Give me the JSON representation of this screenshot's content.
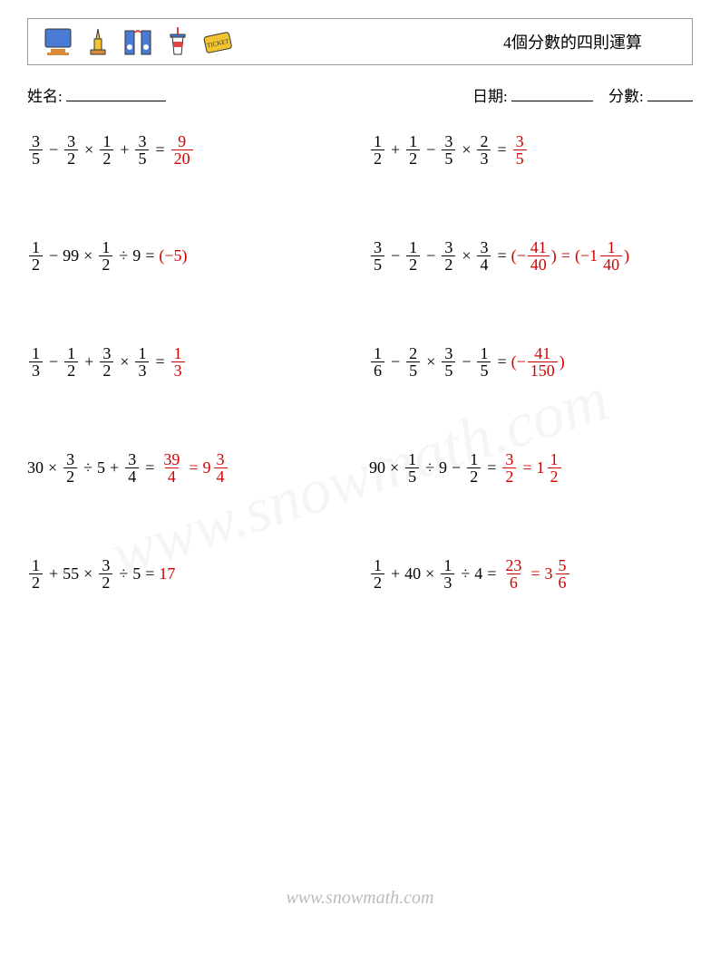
{
  "header": {
    "title": "4個分數的四則運算",
    "icons": [
      "monitor-icon",
      "trophy-icon",
      "speaker-icon",
      "cup-icon",
      "ticket-icon"
    ]
  },
  "info": {
    "name_label": "姓名:",
    "date_label": "日期:",
    "score_label": "分數:"
  },
  "problems": [
    {
      "left": [
        {
          "type": "frac",
          "n": "3",
          "d": "5"
        },
        {
          "type": "op",
          "v": "−"
        },
        {
          "type": "frac",
          "n": "3",
          "d": "2"
        },
        {
          "type": "op",
          "v": "×"
        },
        {
          "type": "frac",
          "n": "1",
          "d": "2"
        },
        {
          "type": "op",
          "v": "+"
        },
        {
          "type": "frac",
          "n": "3",
          "d": "5"
        },
        {
          "type": "op",
          "v": "="
        }
      ],
      "answer": [
        {
          "type": "frac",
          "n": "9",
          "d": "20"
        }
      ]
    },
    {
      "left": [
        {
          "type": "frac",
          "n": "1",
          "d": "2"
        },
        {
          "type": "op",
          "v": "+"
        },
        {
          "type": "frac",
          "n": "1",
          "d": "2"
        },
        {
          "type": "op",
          "v": "−"
        },
        {
          "type": "frac",
          "n": "3",
          "d": "5"
        },
        {
          "type": "op",
          "v": "×"
        },
        {
          "type": "frac",
          "n": "2",
          "d": "3"
        },
        {
          "type": "op",
          "v": "="
        }
      ],
      "answer": [
        {
          "type": "frac",
          "n": "3",
          "d": "5"
        }
      ]
    },
    {
      "left": [
        {
          "type": "frac",
          "n": "1",
          "d": "2"
        },
        {
          "type": "op",
          "v": "−"
        },
        {
          "type": "int",
          "v": "99"
        },
        {
          "type": "op",
          "v": "×"
        },
        {
          "type": "frac",
          "n": "1",
          "d": "2"
        },
        {
          "type": "op",
          "v": "÷"
        },
        {
          "type": "int",
          "v": "9"
        },
        {
          "type": "op",
          "v": "="
        }
      ],
      "answer": [
        {
          "type": "text",
          "v": "(−5)"
        }
      ]
    },
    {
      "left": [
        {
          "type": "frac",
          "n": "3",
          "d": "5"
        },
        {
          "type": "op",
          "v": "−"
        },
        {
          "type": "frac",
          "n": "1",
          "d": "2"
        },
        {
          "type": "op",
          "v": "−"
        },
        {
          "type": "frac",
          "n": "3",
          "d": "2"
        },
        {
          "type": "op",
          "v": "×"
        },
        {
          "type": "frac",
          "n": "3",
          "d": "4"
        },
        {
          "type": "op",
          "v": "="
        }
      ],
      "answer": [
        {
          "type": "text",
          "v": "(−"
        },
        {
          "type": "frac",
          "n": "41",
          "d": "40"
        },
        {
          "type": "text",
          "v": ")"
        },
        {
          "type": "op",
          "v": "="
        },
        {
          "type": "text",
          "v": "(−"
        },
        {
          "type": "mixed",
          "w": "1",
          "n": "1",
          "d": "40"
        },
        {
          "type": "text",
          "v": ")"
        }
      ]
    },
    {
      "left": [
        {
          "type": "frac",
          "n": "1",
          "d": "3"
        },
        {
          "type": "op",
          "v": "−"
        },
        {
          "type": "frac",
          "n": "1",
          "d": "2"
        },
        {
          "type": "op",
          "v": "+"
        },
        {
          "type": "frac",
          "n": "3",
          "d": "2"
        },
        {
          "type": "op",
          "v": "×"
        },
        {
          "type": "frac",
          "n": "1",
          "d": "3"
        },
        {
          "type": "op",
          "v": "="
        }
      ],
      "answer": [
        {
          "type": "frac",
          "n": "1",
          "d": "3"
        }
      ]
    },
    {
      "left": [
        {
          "type": "frac",
          "n": "1",
          "d": "6"
        },
        {
          "type": "op",
          "v": "−"
        },
        {
          "type": "frac",
          "n": "2",
          "d": "5"
        },
        {
          "type": "op",
          "v": "×"
        },
        {
          "type": "frac",
          "n": "3",
          "d": "5"
        },
        {
          "type": "op",
          "v": "−"
        },
        {
          "type": "frac",
          "n": "1",
          "d": "5"
        },
        {
          "type": "op",
          "v": "="
        }
      ],
      "answer": [
        {
          "type": "text",
          "v": "(−"
        },
        {
          "type": "frac",
          "n": "41",
          "d": "150"
        },
        {
          "type": "text",
          "v": ")"
        }
      ]
    },
    {
      "left": [
        {
          "type": "int",
          "v": "30"
        },
        {
          "type": "op",
          "v": "×"
        },
        {
          "type": "frac",
          "n": "3",
          "d": "2"
        },
        {
          "type": "op",
          "v": "÷"
        },
        {
          "type": "int",
          "v": "5"
        },
        {
          "type": "op",
          "v": "+"
        },
        {
          "type": "frac",
          "n": "3",
          "d": "4"
        },
        {
          "type": "op",
          "v": "="
        }
      ],
      "answer": [
        {
          "type": "frac",
          "n": "39",
          "d": "4"
        },
        {
          "type": "op",
          "v": "="
        },
        {
          "type": "mixed",
          "w": "9",
          "n": "3",
          "d": "4"
        }
      ]
    },
    {
      "left": [
        {
          "type": "int",
          "v": "90"
        },
        {
          "type": "op",
          "v": "×"
        },
        {
          "type": "frac",
          "n": "1",
          "d": "5"
        },
        {
          "type": "op",
          "v": "÷"
        },
        {
          "type": "int",
          "v": "9"
        },
        {
          "type": "op",
          "v": "−"
        },
        {
          "type": "frac",
          "n": "1",
          "d": "2"
        },
        {
          "type": "op",
          "v": "="
        }
      ],
      "answer": [
        {
          "type": "frac",
          "n": "3",
          "d": "2"
        },
        {
          "type": "op",
          "v": "="
        },
        {
          "type": "mixed",
          "w": "1",
          "n": "1",
          "d": "2"
        }
      ]
    },
    {
      "left": [
        {
          "type": "frac",
          "n": "1",
          "d": "2"
        },
        {
          "type": "op",
          "v": "+"
        },
        {
          "type": "int",
          "v": "55"
        },
        {
          "type": "op",
          "v": "×"
        },
        {
          "type": "frac",
          "n": "3",
          "d": "2"
        },
        {
          "type": "op",
          "v": "÷"
        },
        {
          "type": "int",
          "v": "5"
        },
        {
          "type": "op",
          "v": "="
        }
      ],
      "answer": [
        {
          "type": "int",
          "v": "17"
        }
      ]
    },
    {
      "left": [
        {
          "type": "frac",
          "n": "1",
          "d": "2"
        },
        {
          "type": "op",
          "v": "+"
        },
        {
          "type": "int",
          "v": "40"
        },
        {
          "type": "op",
          "v": "×"
        },
        {
          "type": "frac",
          "n": "1",
          "d": "3"
        },
        {
          "type": "op",
          "v": "÷"
        },
        {
          "type": "int",
          "v": "4"
        },
        {
          "type": "op",
          "v": "="
        }
      ],
      "answer": [
        {
          "type": "frac",
          "n": "23",
          "d": "6"
        },
        {
          "type": "op",
          "v": "="
        },
        {
          "type": "mixed",
          "w": "3",
          "n": "5",
          "d": "6"
        }
      ]
    }
  ],
  "footer": "www.snowmath.com",
  "colors": {
    "answer": "#d40000",
    "text": "#000000",
    "border": "#999999",
    "watermark": "rgba(0,0,0,0.04)"
  }
}
